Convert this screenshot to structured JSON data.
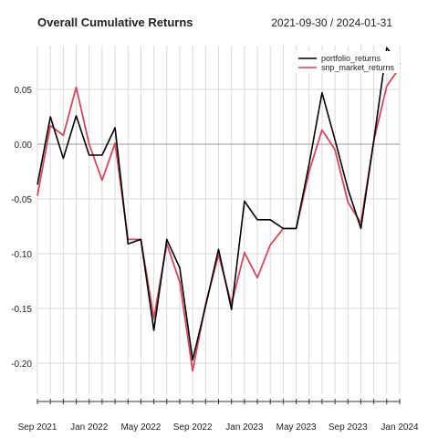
{
  "chart_data": {
    "type": "line",
    "title": "Overall Cumulative Returns",
    "date_range": "2021-09-30 / 2024-01-31",
    "x": [
      "2021-09-30",
      "2021-10-31",
      "2021-11-30",
      "2021-12-31",
      "2022-01-31",
      "2022-02-28",
      "2022-03-31",
      "2022-04-30",
      "2022-05-31",
      "2022-06-30",
      "2022-07-31",
      "2022-08-31",
      "2022-09-30",
      "2022-10-31",
      "2022-11-30",
      "2022-12-31",
      "2023-01-31",
      "2023-02-28",
      "2023-03-31",
      "2023-04-30",
      "2023-05-31",
      "2023-06-30",
      "2023-07-31",
      "2023-08-31",
      "2023-09-30",
      "2023-10-31",
      "2023-11-30",
      "2023-12-31",
      "2024-01-31"
    ],
    "series": [
      {
        "name": "portfolio_returns",
        "color": "#000000",
        "values": [
          -0.037,
          0.025,
          -0.013,
          0.026,
          -0.01,
          -0.01,
          0.015,
          -0.091,
          -0.087,
          -0.17,
          -0.087,
          -0.113,
          -0.197,
          -0.148,
          -0.096,
          -0.151,
          -0.052,
          -0.069,
          -0.069,
          -0.077,
          -0.077,
          -0.018,
          0.047,
          0.004,
          -0.041,
          -0.077,
          0.003,
          0.088,
          0.073
        ]
      },
      {
        "name": "snp_market_returns",
        "color": "#d1495b",
        "values": [
          -0.047,
          0.017,
          0.008,
          0.052,
          0.0,
          -0.033,
          0.001,
          -0.087,
          -0.087,
          -0.159,
          -0.091,
          -0.126,
          -0.207,
          -0.146,
          -0.101,
          -0.146,
          -0.099,
          -0.122,
          -0.092,
          -0.077,
          -0.077,
          -0.025,
          0.013,
          -0.005,
          -0.053,
          -0.072,
          0.003,
          0.053,
          0.07
        ]
      }
    ],
    "x_tick_labels": [
      "Sep 2021",
      "Jan 2022",
      "May 2022",
      "Sep 2022",
      "Jan 2023",
      "May 2023",
      "Sep 2023",
      "Jan 2024"
    ],
    "y_ticks": [
      0.05,
      0.0,
      -0.05,
      -0.1,
      -0.15,
      -0.2
    ],
    "y_tick_labels": [
      "0.05",
      "0.00",
      "-0.05",
      "-0.10",
      "-0.15",
      "-0.20"
    ],
    "ylim": [
      -0.22,
      0.09
    ],
    "grid": true,
    "legend_position": "top-right"
  }
}
